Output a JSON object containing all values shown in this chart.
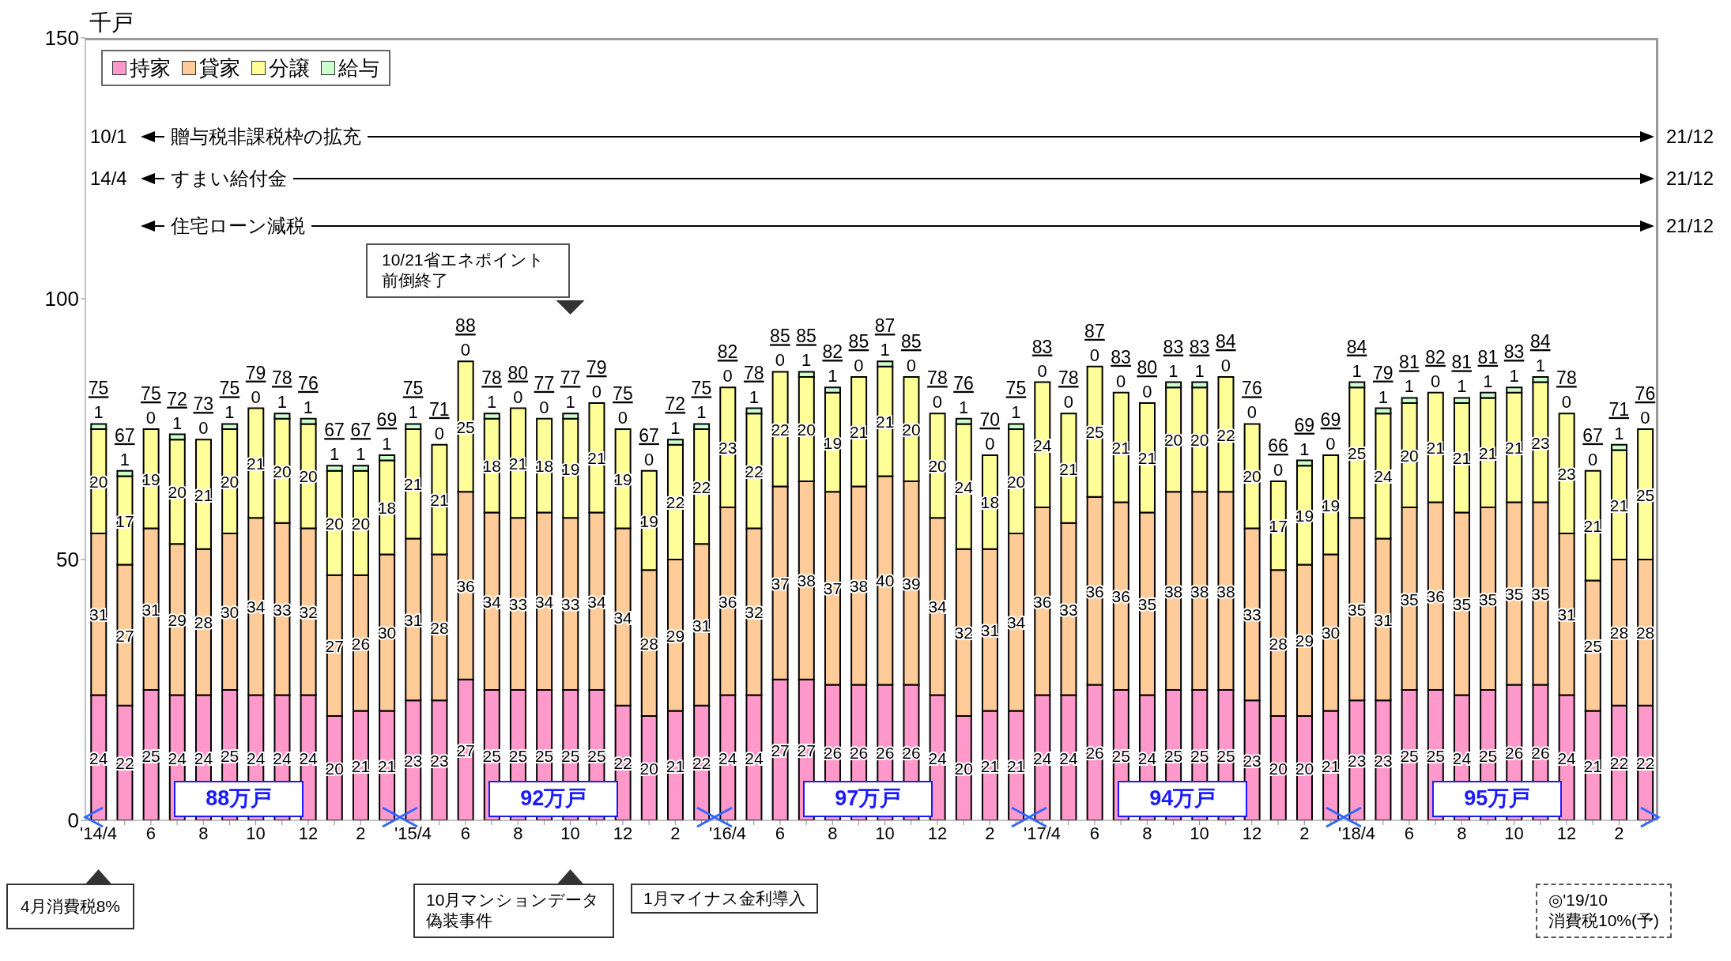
{
  "chart_data": {
    "type": "bar",
    "stacked": true,
    "ylabel": "千戸",
    "categories": [
      "'14/4",
      null,
      "6",
      null,
      "8",
      null,
      "10",
      null,
      "12",
      null,
      "2",
      null,
      "'15/4",
      null,
      "6",
      null,
      "8",
      null,
      "10",
      null,
      "12",
      null,
      "2",
      null,
      "'16/4",
      null,
      "6",
      null,
      "8",
      null,
      "10",
      null,
      "12",
      null,
      "2",
      null,
      "'17/4",
      null,
      "6",
      null,
      "8",
      null,
      "10",
      null,
      "12",
      null,
      "2",
      null,
      "'18/4",
      null,
      "6",
      null,
      "8",
      null,
      "10",
      null,
      "12",
      null,
      "2",
      null
    ],
    "series": [
      {
        "name": "持家",
        "color": "#ff99cc",
        "values": [
          24,
          22,
          25,
          24,
          24,
          25,
          24,
          24,
          24,
          20,
          21,
          21,
          23,
          23,
          27,
          25,
          25,
          25,
          25,
          25,
          22,
          20,
          21,
          22,
          24,
          24,
          27,
          27,
          26,
          26,
          26,
          26,
          24,
          20,
          21,
          21,
          24,
          24,
          26,
          25,
          24,
          25,
          25,
          25,
          23,
          20,
          20,
          21,
          23,
          23,
          25,
          25,
          24,
          25,
          26,
          26,
          24,
          21,
          22,
          22
        ]
      },
      {
        "name": "貸家",
        "color": "#ffcc99",
        "values": [
          31,
          27,
          31,
          29,
          28,
          30,
          34,
          33,
          32,
          27,
          26,
          30,
          31,
          28,
          36,
          34,
          33,
          34,
          33,
          34,
          34,
          28,
          29,
          31,
          36,
          32,
          37,
          38,
          37,
          38,
          40,
          39,
          34,
          32,
          31,
          34,
          36,
          33,
          36,
          36,
          35,
          38,
          38,
          38,
          33,
          28,
          29,
          30,
          35,
          31,
          35,
          36,
          35,
          35,
          35,
          35,
          31,
          25,
          28,
          28
        ]
      },
      {
        "name": "分譲",
        "color": "#ffff99",
        "values": [
          20,
          17,
          19,
          20,
          21,
          20,
          21,
          20,
          20,
          20,
          20,
          18,
          21,
          21,
          25,
          18,
          21,
          18,
          19,
          21,
          19,
          19,
          22,
          22,
          23,
          22,
          22,
          20,
          19,
          21,
          21,
          20,
          20,
          24,
          18,
          20,
          24,
          21,
          25,
          21,
          21,
          20,
          20,
          22,
          20,
          17,
          19,
          19,
          25,
          24,
          20,
          21,
          21,
          21,
          21,
          23,
          23,
          21,
          21,
          25
        ]
      },
      {
        "name": "給与",
        "color": "#ccffcc",
        "values": [
          1,
          1,
          0,
          1,
          0,
          1,
          0,
          1,
          1,
          1,
          1,
          1,
          1,
          0,
          0,
          1,
          0,
          0,
          1,
          0,
          0,
          0,
          1,
          1,
          0,
          1,
          0,
          1,
          1,
          0,
          1,
          0,
          0,
          1,
          0,
          1,
          0,
          0,
          0,
          0,
          0,
          1,
          1,
          0,
          0,
          0,
          1,
          0,
          1,
          1,
          1,
          0,
          1,
          1,
          1,
          1,
          0,
          0,
          1,
          0
        ]
      }
    ],
    "totals": [
      "75",
      "67",
      "75",
      "72",
      "73",
      "75",
      "79",
      "78",
      "76",
      "67",
      "67",
      "69",
      "75",
      "71",
      "88",
      "78",
      "80",
      "77",
      "77",
      "79",
      "75",
      "67",
      "72",
      "75",
      "82",
      "78",
      "85",
      "85",
      "82",
      "85",
      "87",
      "85",
      "78",
      "76",
      "70",
      "75",
      "83",
      "78",
      "87",
      "83",
      "80",
      "83",
      "83",
      "84",
      "76",
      "66",
      "69",
      "69",
      "84",
      "79",
      "81",
      "82",
      "81",
      "81",
      "83",
      "84",
      "78",
      "67",
      "71",
      "76"
    ],
    "data_labels": true,
    "ylim": [
      0,
      150
    ],
    "yticks": [
      0,
      50,
      100,
      150
    ],
    "legend": "top left",
    "annotations": [
      "10/1",
      "贈与税非課税枠の拡充",
      "21/12",
      "14/4",
      "すまい給付金",
      "21/12",
      "住宅ローン減税",
      "21/12",
      "10/21省エネポイント前倒終了",
      "88万戸",
      "92万戸",
      "97万戸",
      "94万戸",
      "95万戸",
      "4月消費税8%",
      "10月マンションデータ偽装事件",
      "1月マイナス金利導入",
      "◎'19/10\n消費税10%(予)"
    ]
  }
}
